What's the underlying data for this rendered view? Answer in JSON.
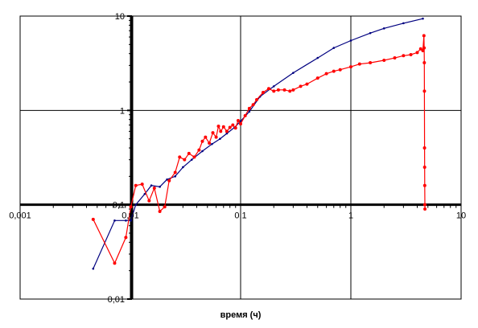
{
  "chart_data": {
    "type": "scatter",
    "title": "",
    "xlabel": "время (ч)",
    "ylabel": "",
    "x_scale": "log",
    "y_scale": "log",
    "xlim": [
      0.001,
      10
    ],
    "ylim": [
      0.01,
      10
    ],
    "grid": true,
    "x_ticks": [
      "0,001",
      "0,01",
      "0,1",
      "1",
      "10"
    ],
    "y_ticks": [
      "0,01",
      "0,1",
      "1",
      "10"
    ],
    "series": [
      {
        "color": "#000080",
        "points": [
          [
            0.0046,
            0.021
          ],
          [
            0.0072,
            0.068
          ],
          [
            0.0091,
            0.068
          ],
          [
            0.0101,
            0.068
          ],
          [
            0.0112,
            0.1
          ],
          [
            0.0135,
            0.13
          ],
          [
            0.0155,
            0.16
          ],
          [
            0.0185,
            0.155
          ],
          [
            0.0215,
            0.185
          ],
          [
            0.0255,
            0.2
          ],
          [
            0.03,
            0.25
          ],
          [
            0.036,
            0.3
          ],
          [
            0.045,
            0.37
          ],
          [
            0.055,
            0.44
          ],
          [
            0.065,
            0.5
          ],
          [
            0.075,
            0.57
          ],
          [
            0.088,
            0.66
          ],
          [
            0.1,
            0.77
          ],
          [
            0.12,
            0.97
          ],
          [
            0.15,
            1.4
          ],
          [
            0.2,
            1.8
          ],
          [
            0.3,
            2.5
          ],
          [
            0.5,
            3.6
          ],
          [
            0.7,
            4.6
          ],
          [
            1.0,
            5.5
          ],
          [
            1.5,
            6.6
          ],
          [
            2.0,
            7.4
          ],
          [
            3.0,
            8.4
          ],
          [
            4.5,
            9.4
          ]
        ]
      },
      {
        "color": "#ff0000",
        "points": [
          [
            0.0046,
            0.07
          ],
          [
            0.0072,
            0.024
          ],
          [
            0.0091,
            0.045
          ],
          [
            0.0101,
            0.095
          ],
          [
            0.0112,
            0.16
          ],
          [
            0.0128,
            0.165
          ],
          [
            0.0148,
            0.11
          ],
          [
            0.0165,
            0.15
          ],
          [
            0.0185,
            0.085
          ],
          [
            0.0205,
            0.095
          ],
          [
            0.0225,
            0.18
          ],
          [
            0.0255,
            0.22
          ],
          [
            0.028,
            0.32
          ],
          [
            0.031,
            0.3
          ],
          [
            0.034,
            0.35
          ],
          [
            0.038,
            0.32
          ],
          [
            0.042,
            0.38
          ],
          [
            0.045,
            0.47
          ],
          [
            0.048,
            0.52
          ],
          [
            0.052,
            0.45
          ],
          [
            0.056,
            0.58
          ],
          [
            0.06,
            0.52
          ],
          [
            0.063,
            0.68
          ],
          [
            0.066,
            0.6
          ],
          [
            0.07,
            0.67
          ],
          [
            0.075,
            0.6
          ],
          [
            0.08,
            0.66
          ],
          [
            0.085,
            0.7
          ],
          [
            0.09,
            0.65
          ],
          [
            0.095,
            0.78
          ],
          [
            0.1,
            0.72
          ],
          [
            0.11,
            0.88
          ],
          [
            0.12,
            1.05
          ],
          [
            0.13,
            1.15
          ],
          [
            0.14,
            1.3
          ],
          [
            0.16,
            1.55
          ],
          [
            0.18,
            1.7
          ],
          [
            0.2,
            1.6
          ],
          [
            0.22,
            1.65
          ],
          [
            0.25,
            1.65
          ],
          [
            0.28,
            1.6
          ],
          [
            0.3,
            1.65
          ],
          [
            0.35,
            1.8
          ],
          [
            0.4,
            1.9
          ],
          [
            0.5,
            2.2
          ],
          [
            0.6,
            2.45
          ],
          [
            0.7,
            2.6
          ],
          [
            0.8,
            2.7
          ],
          [
            1.0,
            2.9
          ],
          [
            1.2,
            3.1
          ],
          [
            1.5,
            3.2
          ],
          [
            2.0,
            3.4
          ],
          [
            2.5,
            3.6
          ],
          [
            3.0,
            3.8
          ],
          [
            3.5,
            3.9
          ],
          [
            4.0,
            4.1
          ],
          [
            4.3,
            4.5
          ],
          [
            4.5,
            4.3
          ],
          [
            4.6,
            6.2
          ],
          [
            4.62,
            4.6
          ],
          [
            4.64,
            3.2
          ],
          [
            4.65,
            1.6
          ],
          [
            4.66,
            0.4
          ],
          [
            4.67,
            0.25
          ],
          [
            4.68,
            0.16
          ],
          [
            4.69,
            0.1
          ],
          [
            4.7,
            0.09
          ]
        ]
      }
    ]
  }
}
